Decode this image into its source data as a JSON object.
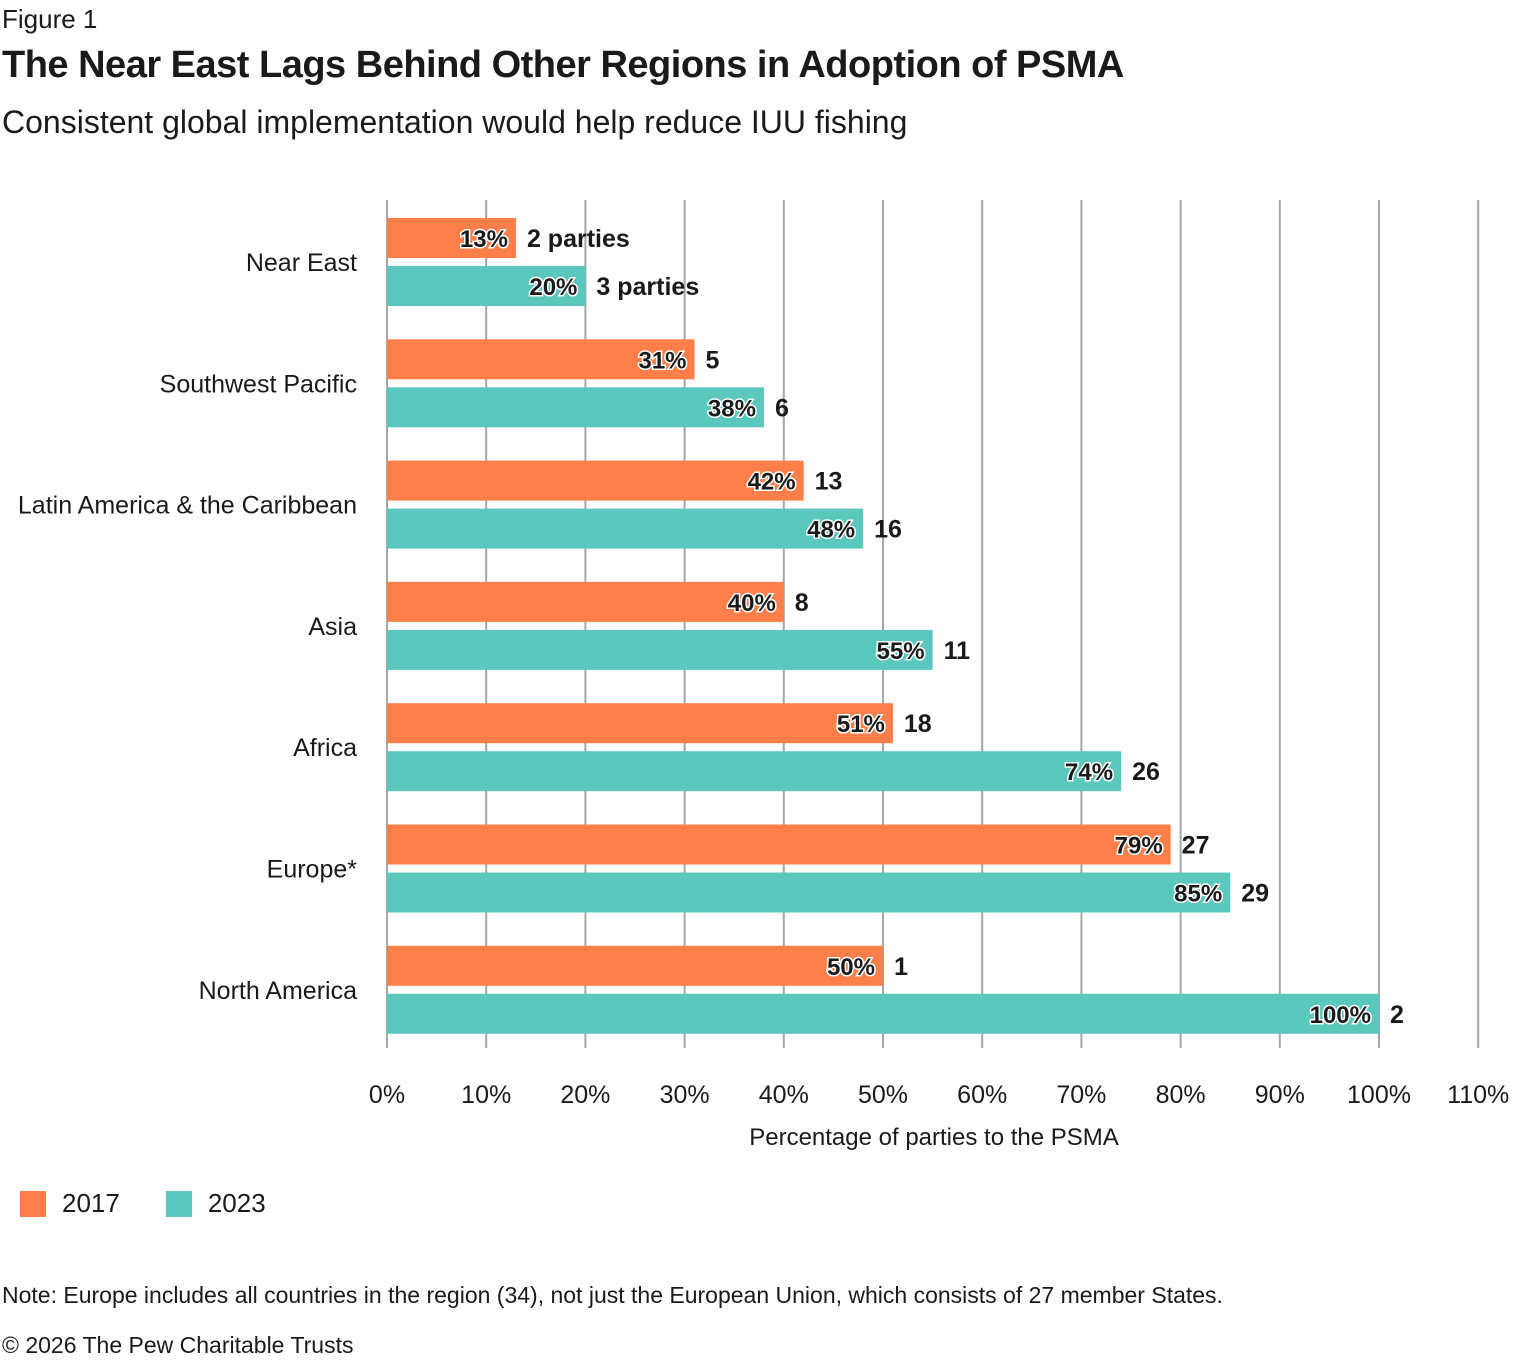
{
  "figure_label": "Figure 1",
  "title": "The Near East Lags Behind Other Regions in Adoption of PSMA",
  "subtitle": "Consistent global implementation would help reduce IUU fishing",
  "note": "Note: Europe includes all countries in the region (34), not just the European Union, which consists of 27 member States.",
  "copyright": "© 2026 The Pew Charitable Trusts",
  "colors": {
    "2017": "#FF7F4A",
    "2023": "#5BC8BE",
    "grid": "#A6A6A6"
  },
  "chart_data": {
    "type": "bar",
    "orientation": "horizontal",
    "title": "The Near East Lags Behind Other Regions in Adoption of PSMA",
    "subtitle": "Consistent global implementation would help reduce IUU fishing",
    "xlabel": "Percentage of parties to the PSMA",
    "ylabel": "",
    "xlim": [
      0,
      110
    ],
    "x_ticks": [
      "0%",
      "10%",
      "20%",
      "30%",
      "40%",
      "50%",
      "60%",
      "70%",
      "80%",
      "90%",
      "100%",
      "110%"
    ],
    "x_tick_values": [
      0,
      10,
      20,
      30,
      40,
      50,
      60,
      70,
      80,
      90,
      100,
      110
    ],
    "grid": true,
    "legend_position": "bottom-left",
    "categories": [
      "Near East",
      "Southwest Pacific",
      "Latin America & the Caribbean",
      "Asia",
      "Africa",
      "Europe*",
      "North America"
    ],
    "series": [
      {
        "name": "2017",
        "color": "#FF7F4A",
        "values": [
          13,
          31,
          42,
          40,
          51,
          79,
          50
        ],
        "value_labels": [
          "13%",
          "31%",
          "42%",
          "40%",
          "51%",
          "79%",
          "50%"
        ],
        "count_labels": [
          "2 parties",
          "5",
          "13",
          "8",
          "18",
          "27",
          "1"
        ]
      },
      {
        "name": "2023",
        "color": "#5BC8BE",
        "values": [
          20,
          38,
          48,
          55,
          74,
          85,
          100
        ],
        "value_labels": [
          "20%",
          "38%",
          "48%",
          "55%",
          "74%",
          "85%",
          "100%"
        ],
        "count_labels": [
          "3 parties",
          "6",
          "16",
          "11",
          "26",
          "29",
          "2"
        ]
      }
    ]
  }
}
